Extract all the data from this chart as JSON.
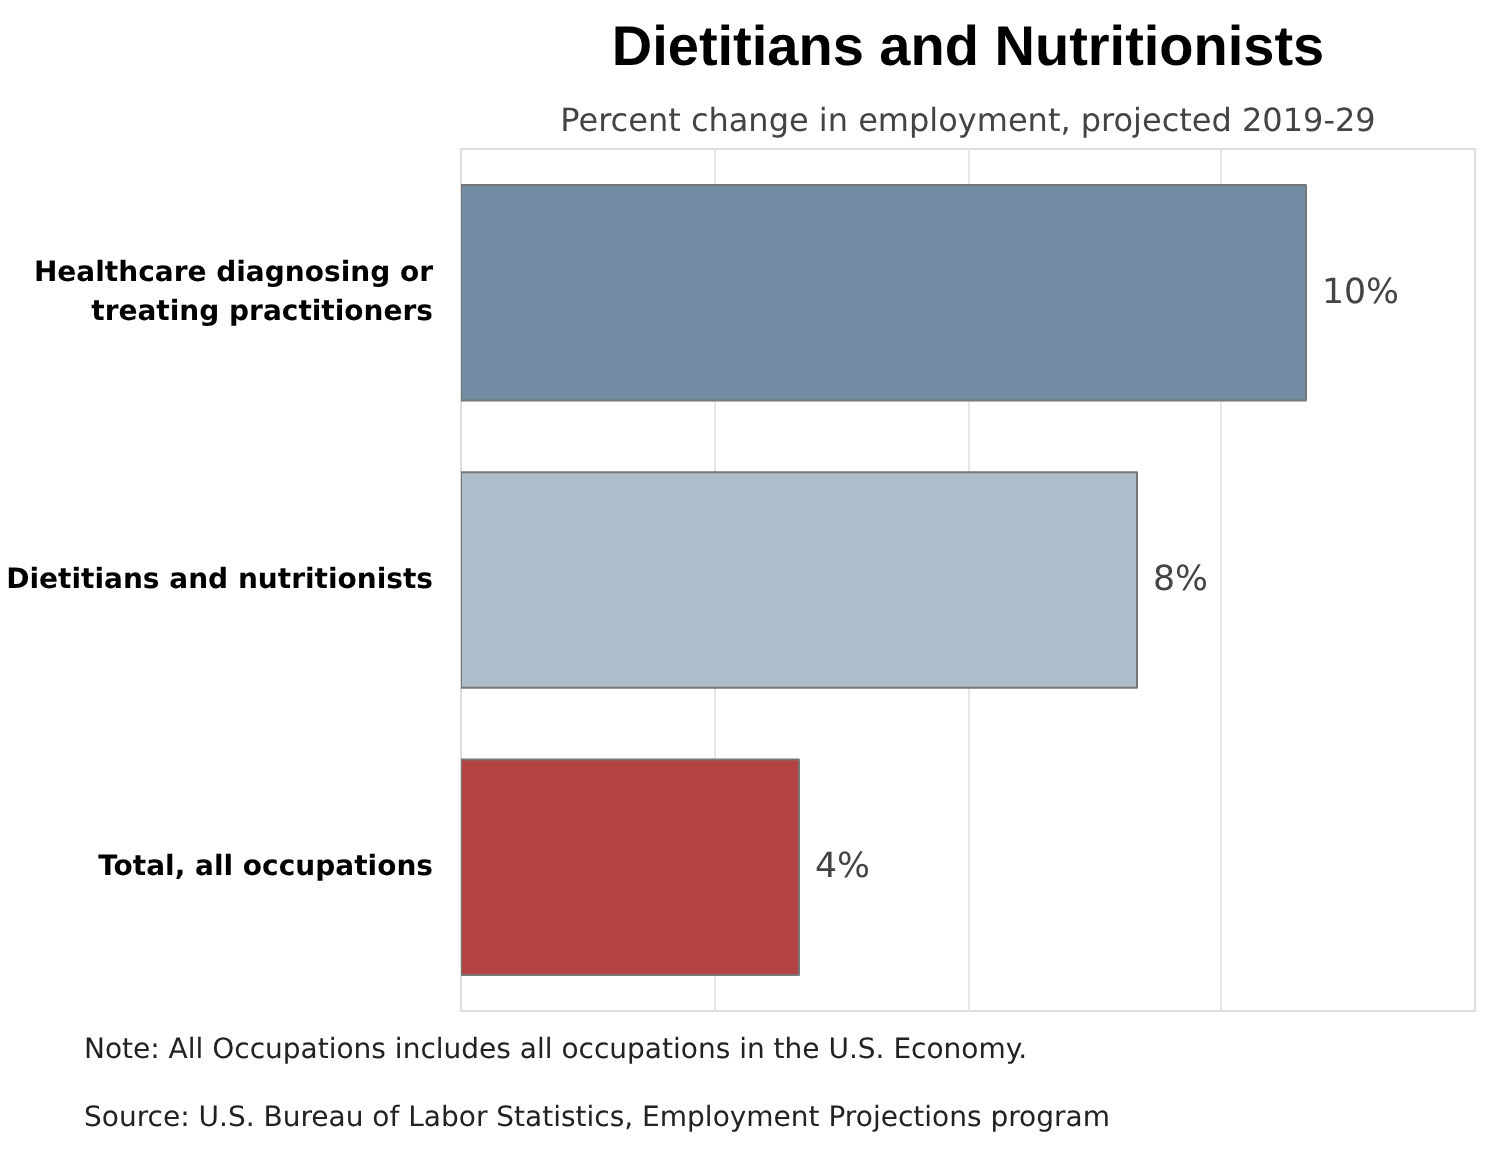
{
  "chart_data": {
    "type": "bar",
    "orientation": "horizontal",
    "title": "Dietitians and Nutritionists",
    "subtitle": "Percent change in employment, projected 2019-29",
    "categories": [
      "Healthcare diagnosing or treating practitioners",
      "Dietitians and nutritionists",
      "Total, all occupations"
    ],
    "values": [
      10,
      8,
      4
    ],
    "colors": [
      "#718ca3",
      "#adbeca",
      "#b34242"
    ],
    "value_labels": [
      "10%",
      "8%",
      "4%"
    ],
    "xlim": [
      0,
      12
    ],
    "xticks": [
      {
        "value": 0,
        "label": null
      },
      {
        "value": 3,
        "label": null
      },
      {
        "value": 6,
        "label": null
      },
      {
        "value": 9,
        "label": null
      },
      {
        "value": 12,
        "label": null
      }
    ],
    "tick_labels": "y",
    "grid": "x",
    "annotations": [
      "Note: All Occupations includes all occupations in the U.S. Economy.",
      "Source: U.S. Bureau of Labor Statistics, Employment Projections program"
    ]
  }
}
